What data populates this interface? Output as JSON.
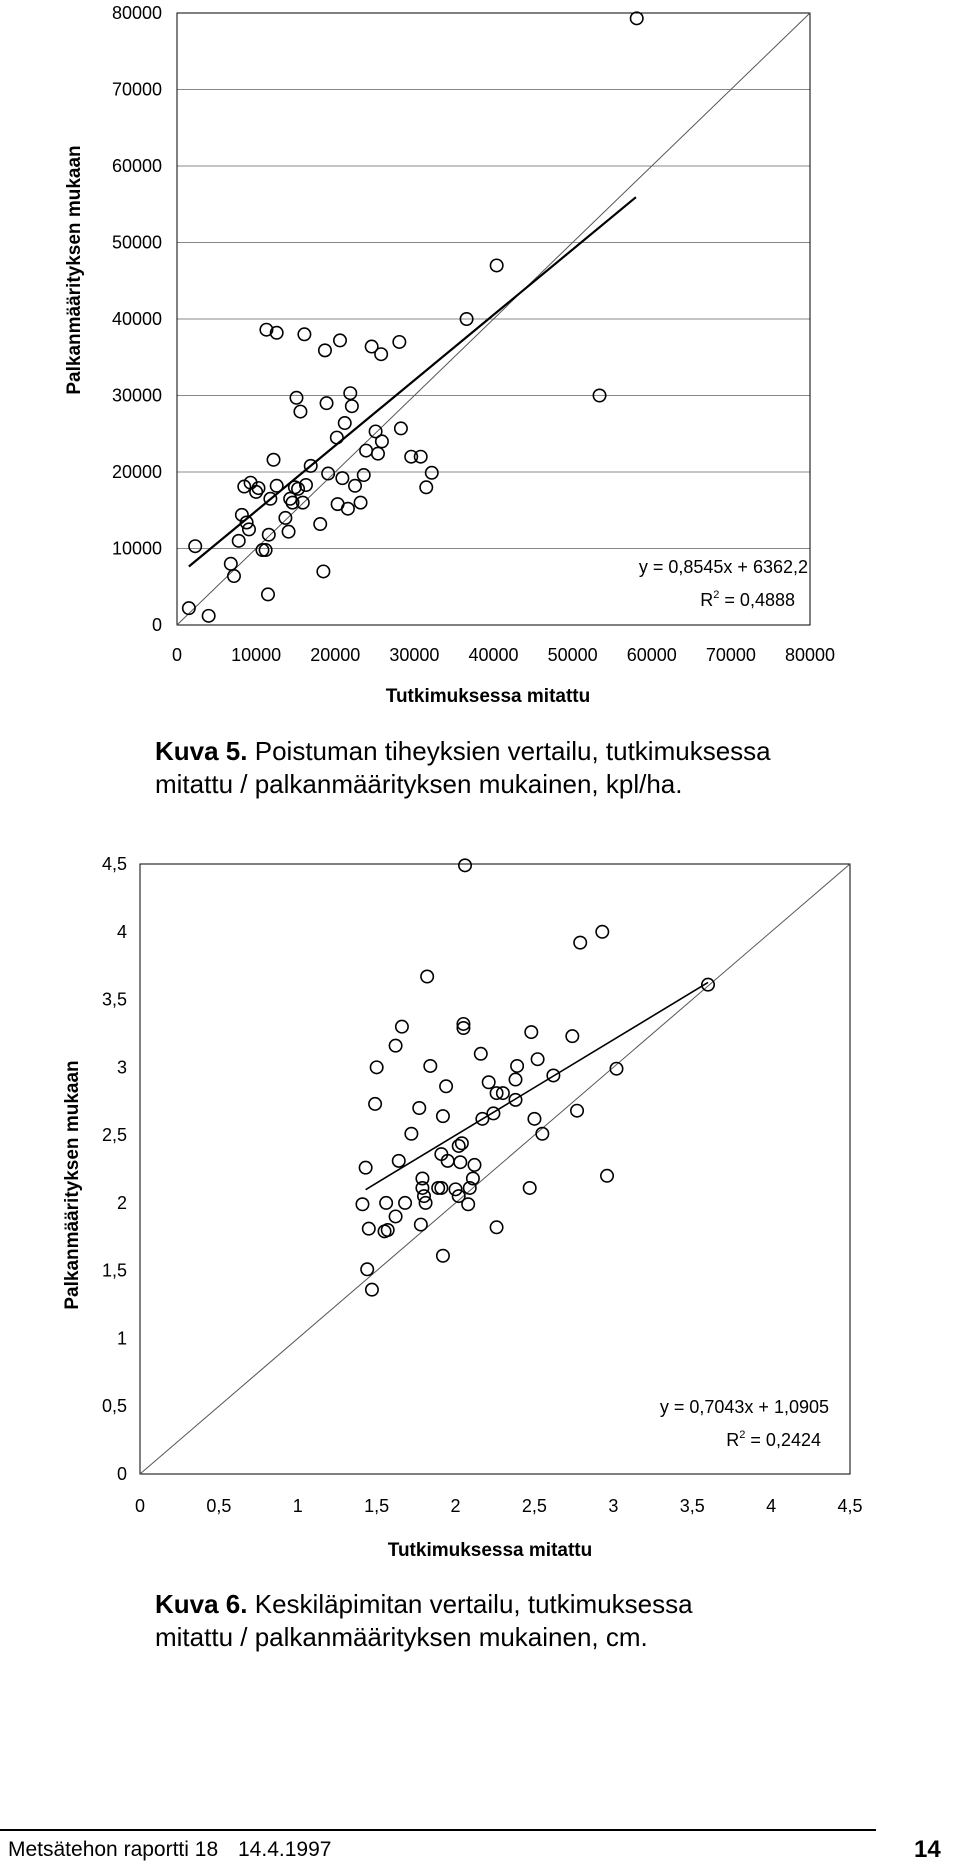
{
  "chart_data": [
    {
      "type": "scatter",
      "ylabel": "Palkanmäärityksen mukaan",
      "xlabel": "Tutkimuksessa mitattu",
      "xlim": [
        0,
        80000
      ],
      "ylim": [
        0,
        80000
      ],
      "xticks": [
        "0",
        "10000",
        "20000",
        "30000",
        "40000",
        "50000",
        "60000",
        "70000",
        "80000"
      ],
      "yticks": [
        "0",
        "10000",
        "20000",
        "30000",
        "40000",
        "50000",
        "60000",
        "70000",
        "80000"
      ],
      "equation": "y = 0,8545x + 6362,2",
      "r2": "R 2 = 0,4888",
      "reference_line": "y = x",
      "regression": {
        "slope": 0.8545,
        "intercept": 6362.2,
        "x_range": [
          1500,
          58000
        ]
      },
      "points": [
        [
          1500,
          2200
        ],
        [
          2300,
          10300
        ],
        [
          4000,
          1200
        ],
        [
          6800,
          8000
        ],
        [
          7200,
          6400
        ],
        [
          7800,
          11000
        ],
        [
          8200,
          14400
        ],
        [
          8500,
          18100
        ],
        [
          8800,
          13400
        ],
        [
          9100,
          12500
        ],
        [
          9300,
          18600
        ],
        [
          10000,
          17400
        ],
        [
          10300,
          17900
        ],
        [
          10800,
          9800
        ],
        [
          11200,
          9800
        ],
        [
          11300,
          38600
        ],
        [
          11500,
          4000
        ],
        [
          11600,
          11800
        ],
        [
          11800,
          16500
        ],
        [
          12200,
          21600
        ],
        [
          12600,
          38200
        ],
        [
          12600,
          18200
        ],
        [
          13700,
          14000
        ],
        [
          14100,
          12200
        ],
        [
          14300,
          16500
        ],
        [
          14600,
          16000
        ],
        [
          14900,
          18000
        ],
        [
          15100,
          29700
        ],
        [
          15300,
          17800
        ],
        [
          15600,
          27900
        ],
        [
          15900,
          16000
        ],
        [
          16100,
          38000
        ],
        [
          16300,
          18300
        ],
        [
          16900,
          20800
        ],
        [
          18100,
          13200
        ],
        [
          18500,
          7000
        ],
        [
          18700,
          35900
        ],
        [
          18900,
          29000
        ],
        [
          19100,
          19800
        ],
        [
          20200,
          24500
        ],
        [
          20300,
          15800
        ],
        [
          20600,
          37200
        ],
        [
          20900,
          19200
        ],
        [
          21200,
          26400
        ],
        [
          21600,
          15200
        ],
        [
          21900,
          30300
        ],
        [
          22100,
          28600
        ],
        [
          22500,
          18200
        ],
        [
          23200,
          16000
        ],
        [
          23600,
          19600
        ],
        [
          23900,
          22800
        ],
        [
          24600,
          36400
        ],
        [
          25100,
          25300
        ],
        [
          25400,
          22400
        ],
        [
          25800,
          35400
        ],
        [
          25900,
          24000
        ],
        [
          28100,
          37000
        ],
        [
          28300,
          25700
        ],
        [
          29600,
          22000
        ],
        [
          30800,
          22000
        ],
        [
          31500,
          18000
        ],
        [
          32200,
          19900
        ],
        [
          36600,
          40000
        ],
        [
          40400,
          47000
        ],
        [
          53400,
          30000
        ],
        [
          58100,
          79300
        ]
      ]
    },
    {
      "type": "scatter",
      "ylabel": "Palkanmäärityksen mukaan",
      "xlabel": "Tutkimuksessa mitattu",
      "xlim": [
        0,
        4.5
      ],
      "ylim": [
        0,
        4.5
      ],
      "xticks": [
        "0",
        "0,5",
        "1",
        "1,5",
        "2",
        "2,5",
        "3",
        "3,5",
        "4",
        "4,5"
      ],
      "yticks": [
        "0",
        "0,5",
        "1",
        "1,5",
        "2",
        "2,5",
        "3",
        "3,5",
        "4",
        "4,5"
      ],
      "equation": "y = 0,7043x + 1,0905",
      "r2": "R 2 = 0,2424",
      "reference_line": "y = x",
      "regression": {
        "slope": 0.7043,
        "intercept": 1.0905,
        "x_range": [
          1.43,
          3.6
        ]
      },
      "points": [
        [
          1.41,
          1.99
        ],
        [
          1.43,
          2.26
        ],
        [
          1.44,
          1.51
        ],
        [
          1.45,
          1.81
        ],
        [
          1.47,
          1.36
        ],
        [
          1.49,
          2.73
        ],
        [
          1.5,
          3.0
        ],
        [
          1.55,
          1.79
        ],
        [
          1.56,
          2.0
        ],
        [
          1.57,
          1.8
        ],
        [
          1.62,
          1.9
        ],
        [
          1.62,
          3.16
        ],
        [
          1.64,
          2.31
        ],
        [
          1.66,
          3.3
        ],
        [
          1.68,
          2.0
        ],
        [
          1.72,
          2.51
        ],
        [
          1.77,
          2.7
        ],
        [
          1.78,
          1.84
        ],
        [
          1.79,
          2.18
        ],
        [
          1.79,
          2.11
        ],
        [
          1.8,
          2.05
        ],
        [
          1.81,
          2.0
        ],
        [
          1.82,
          3.67
        ],
        [
          1.84,
          3.01
        ],
        [
          1.89,
          2.11
        ],
        [
          1.91,
          2.36
        ],
        [
          1.91,
          2.11
        ],
        [
          1.92,
          2.64
        ],
        [
          1.92,
          1.61
        ],
        [
          1.94,
          2.86
        ],
        [
          1.95,
          2.31
        ],
        [
          2.0,
          2.1
        ],
        [
          2.02,
          2.42
        ],
        [
          2.02,
          2.05
        ],
        [
          2.03,
          2.3
        ],
        [
          2.04,
          2.44
        ],
        [
          2.05,
          3.32
        ],
        [
          2.05,
          3.29
        ],
        [
          2.08,
          1.99
        ],
        [
          2.09,
          2.11
        ],
        [
          2.11,
          2.18
        ],
        [
          2.12,
          2.28
        ],
        [
          2.16,
          3.1
        ],
        [
          2.17,
          2.62
        ],
        [
          2.21,
          2.89
        ],
        [
          2.24,
          2.66
        ],
        [
          2.26,
          2.81
        ],
        [
          2.26,
          1.82
        ],
        [
          2.3,
          2.81
        ],
        [
          2.38,
          2.76
        ],
        [
          2.38,
          2.91
        ],
        [
          2.39,
          3.01
        ],
        [
          2.47,
          2.11
        ],
        [
          2.48,
          3.26
        ],
        [
          2.5,
          2.62
        ],
        [
          2.52,
          3.06
        ],
        [
          2.55,
          2.51
        ],
        [
          2.62,
          2.94
        ],
        [
          2.74,
          3.23
        ],
        [
          2.77,
          2.68
        ],
        [
          2.79,
          3.92
        ],
        [
          2.93,
          4.0
        ],
        [
          2.96,
          2.2
        ],
        [
          3.02,
          2.99
        ],
        [
          3.6,
          3.61
        ],
        [
          2.06,
          4.49
        ]
      ]
    }
  ],
  "captions": [
    {
      "label": "Kuva 5.",
      "line1": "Poistuman tiheyksien vertailu, tutkimuksessa",
      "line2": "mitattu / palkanmäärityksen mukainen, kpl/ha."
    },
    {
      "label": "Kuva 6.",
      "line1": "Keskiläpimitan vertailu, tutkimuksessa",
      "line2": "mitattu / palkanmäärityksen mukainen, cm."
    }
  ],
  "footer": {
    "report": "Metsätehon raportti 18",
    "date": "14.4.1997",
    "page": "14"
  }
}
